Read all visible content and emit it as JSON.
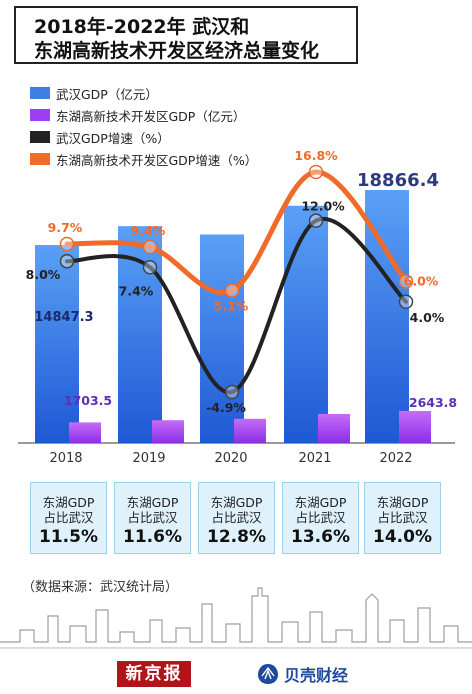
{
  "title": {
    "line1": "2018年-2022年 武汉和",
    "line2": "东湖高新技术开发区经济总量变化"
  },
  "legend": [
    {
      "label": "武汉GDP（亿元）",
      "color": "#3f7fe6",
      "kind": "bar"
    },
    {
      "label": "东湖高新技术开发区GDP（亿元）",
      "color": "#9d3ff0",
      "kind": "bar"
    },
    {
      "label": "武汉GDP增速（%）",
      "color": "#222222",
      "kind": "line"
    },
    {
      "label": "东湖高新技术开发区GDP增速（%）",
      "color": "#f06a2a",
      "kind": "line"
    }
  ],
  "chart_data": {
    "type": "bar",
    "categories": [
      "2018",
      "2019",
      "2020",
      "2021",
      "2022"
    ],
    "series": [
      {
        "name": "武汉GDP（亿元）",
        "type": "bar",
        "values": [
          14847.3,
          16223.2,
          15616.1,
          17716.8,
          18866.4
        ],
        "labels": [
          "14847.3",
          "",
          "",
          "",
          "18866.4"
        ]
      },
      {
        "name": "东湖高新技术开发区GDP（亿元）",
        "type": "bar",
        "values": [
          1703.5,
          1882.0,
          2001.0,
          2400.0,
          2643.8
        ],
        "labels": [
          "1703.5",
          "",
          "",
          "",
          "2643.8"
        ]
      },
      {
        "name": "武汉GDP增速（%）",
        "type": "line",
        "values": [
          8.0,
          7.4,
          -4.9,
          12.0,
          4.0
        ],
        "labels": [
          "8.0%",
          "7.4%",
          "-4.9%",
          "12.0%",
          "4.0%"
        ]
      },
      {
        "name": "东湖高新技术开发区GDP增速（%）",
        "type": "line",
        "values": [
          9.7,
          9.4,
          5.1,
          16.8,
          6.0
        ],
        "labels": [
          "9.7%",
          "9.4%",
          "5.1%",
          "16.8%",
          "6.0%"
        ]
      }
    ],
    "share": {
      "line1": "东湖GDP",
      "line2": "占比武汉",
      "values": [
        "11.5%",
        "11.6%",
        "12.8%",
        "13.6%",
        "14.0%"
      ]
    },
    "colors": {
      "bar_top": "#4f95f2",
      "bar_bottom": "#1f5fd8",
      "bar2_top": "#c46af8",
      "bar2_bottom": "#8b2fe6",
      "line1": "#222222",
      "line2": "#f06a2a",
      "big_label": "#2c3a80",
      "purple_label": "#5b2fb8"
    }
  },
  "source": "（数据来源：武汉统计局）",
  "logos": {
    "xjb": "新京报",
    "bk": "贝壳财经"
  }
}
